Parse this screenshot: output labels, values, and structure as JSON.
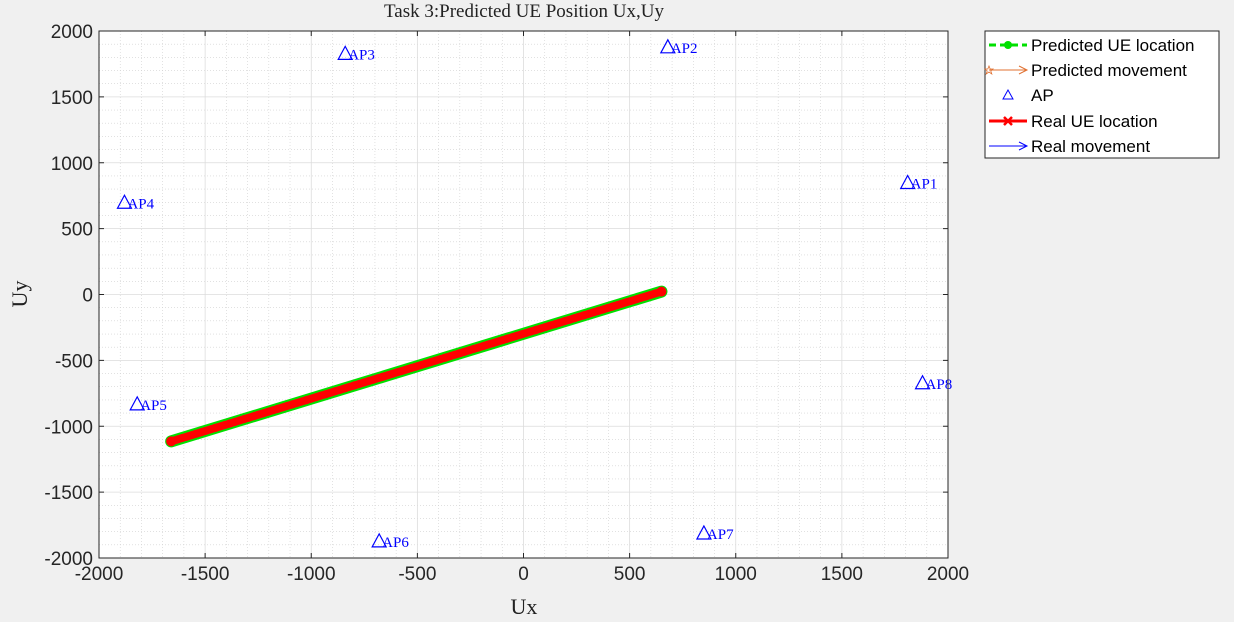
{
  "chart_data": {
    "type": "line",
    "title": "Task 3:Predicted UE Position Ux,Uy",
    "xlabel": "Ux",
    "ylabel": "Uy",
    "xlim": [
      -2000,
      2000
    ],
    "ylim": [
      -2000,
      2000
    ],
    "xticks": [
      -2000,
      -1500,
      -1000,
      -500,
      0,
      500,
      1000,
      1500,
      2000
    ],
    "yticks": [
      -2000,
      -1500,
      -1000,
      -500,
      0,
      500,
      1000,
      1500,
      2000
    ],
    "grid": true,
    "minor_grid": true,
    "legend_position": "outside-top-right",
    "legend": [
      {
        "label": "Predicted UE location",
        "color": "#00e000",
        "style": "dashed-circle"
      },
      {
        "label": "Predicted movement",
        "color": "#e07030",
        "style": "arrow-star"
      },
      {
        "label": "AP",
        "color": "#0000ff",
        "style": "triangle"
      },
      {
        "label": "Real UE location",
        "color": "#ff0000",
        "style": "solid-x"
      },
      {
        "label": "Real movement",
        "color": "#0000ff",
        "style": "arrow"
      }
    ],
    "series": [
      {
        "name": "Predicted UE location",
        "x": [
          -1660,
          650
        ],
        "y": [
          -1115,
          22
        ],
        "color": "#00e000"
      },
      {
        "name": "Real UE location",
        "x": [
          -1660,
          650
        ],
        "y": [
          -1115,
          22
        ],
        "color": "#ff0000"
      }
    ],
    "access_points": [
      {
        "label": "AP1",
        "x": 1810,
        "y": 850
      },
      {
        "label": "AP2",
        "x": 680,
        "y": 1880
      },
      {
        "label": "AP3",
        "x": -840,
        "y": 1830
      },
      {
        "label": "AP4",
        "x": -1880,
        "y": 700
      },
      {
        "label": "AP5",
        "x": -1820,
        "y": -830
      },
      {
        "label": "AP6",
        "x": -680,
        "y": -1870
      },
      {
        "label": "AP7",
        "x": 850,
        "y": -1810
      },
      {
        "label": "AP8",
        "x": 1880,
        "y": -670
      }
    ]
  }
}
